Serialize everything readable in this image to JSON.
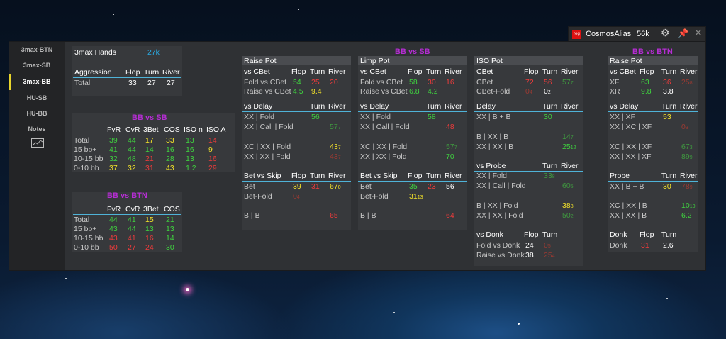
{
  "user": {
    "name": "CosmosAlias",
    "hands": "56k",
    "badge": "reg"
  },
  "sidebar": {
    "items": [
      "3max-BTN",
      "3max-SB",
      "3max-BB",
      "HU-SB",
      "HU-BB",
      "Notes"
    ]
  },
  "summary": {
    "title": "3max Hands",
    "count": "27k",
    "headers": [
      "Aggression",
      "Flop",
      "Turn",
      "River"
    ],
    "row": [
      "Total",
      "33",
      "27",
      "27"
    ]
  },
  "bbvssb_left": {
    "title": "BB vs SB",
    "headers": [
      "FvR",
      "CvR",
      "3Bet",
      "COS",
      "ISO n",
      "ISO A"
    ],
    "rows": [
      [
        "Total",
        "39",
        "44",
        "17",
        "33",
        "13",
        "14"
      ],
      [
        "15 bb+",
        "41",
        "44",
        "14",
        "16",
        "16",
        "9"
      ],
      [
        "10-15 bb",
        "32",
        "48",
        "21",
        "28",
        "13",
        "16"
      ],
      [
        "0-10 bb",
        "37",
        "32",
        "31",
        "43",
        "1.2",
        "29"
      ]
    ]
  },
  "bbvsbtn_left": {
    "title": "BB vs BTN",
    "headers": [
      "FvR",
      "CvR",
      "3Bet",
      "COS"
    ],
    "rows": [
      [
        "Total",
        "44",
        "41",
        "15",
        "21"
      ],
      [
        "15 bb+",
        "43",
        "44",
        "13",
        "13"
      ],
      [
        "10-15 bb",
        "43",
        "41",
        "16",
        "14"
      ],
      [
        "0-10 bb",
        "50",
        "27",
        "24",
        "30"
      ]
    ]
  },
  "bbvssb_title": "BB vs SB",
  "bbvsbtn_title": "BB vs BTN",
  "raise_pot": {
    "title": "Raise Pot",
    "cbet": {
      "h": [
        "vs CBet",
        "Flop",
        "Turn",
        "River"
      ],
      "rows": [
        [
          "Fold vs CBet",
          "54",
          "25",
          "20"
        ],
        [
          "Raise vs CBet",
          "4.5",
          "9.4",
          ""
        ]
      ]
    },
    "delay": {
      "h": [
        "vs Delay",
        "Turn",
        "River"
      ],
      "rows": [
        [
          "XX | Fold",
          "56",
          ""
        ],
        [
          "XX | Call | Fold",
          "",
          "57"
        ],
        [
          "XC | XX | Fold",
          "",
          "43"
        ],
        [
          "XX | XX | Fold",
          "",
          "43"
        ]
      ]
    },
    "skip": {
      "h": [
        "Bet vs Skip",
        "Flop",
        "Turn",
        "River"
      ],
      "rows": [
        [
          "Bet",
          "39",
          "31",
          "67"
        ],
        [
          "Bet-Fold",
          "0",
          "",
          ""
        ],
        [
          "B | B",
          "",
          "",
          "65"
        ]
      ]
    }
  },
  "limp_pot": {
    "title": "Limp Pot",
    "cbet": {
      "h": [
        "vs CBet",
        "Flop",
        "Turn",
        "River"
      ],
      "rows": [
        [
          "Fold vs CBet",
          "58",
          "30",
          "16"
        ],
        [
          "Raise vs CBet",
          "6.8",
          "4.2",
          ""
        ]
      ]
    },
    "delay": {
      "h": [
        "vs Delay",
        "Turn",
        "River"
      ],
      "rows": [
        [
          "XX | Fold",
          "58",
          ""
        ],
        [
          "XX | Call | Fold",
          "",
          "48"
        ],
        [
          "XC | XX | Fold",
          "",
          "57"
        ],
        [
          "XX | XX | Fold",
          "",
          "70"
        ]
      ]
    },
    "skip": {
      "h": [
        "Bet vs Skip",
        "Flop",
        "Turn",
        "River"
      ],
      "rows": [
        [
          "Bet",
          "35",
          "23",
          "56"
        ],
        [
          "Bet-Fold",
          "31",
          "",
          ""
        ],
        [
          "B | B",
          "",
          "",
          "64"
        ]
      ]
    }
  },
  "iso_pot": {
    "title": "ISO Pot",
    "cbet": {
      "h": [
        "CBet",
        "Flop",
        "Turn",
        "River"
      ],
      "rows": [
        [
          "CBet",
          "72",
          "56",
          "57"
        ],
        [
          "CBet-Fold",
          "0",
          "0",
          ""
        ]
      ]
    },
    "delay": {
      "h": [
        "Delay",
        "Turn",
        "River"
      ],
      "rows": [
        [
          "XX | B + B",
          "30",
          ""
        ],
        [
          "B | XX | B",
          "",
          "14"
        ],
        [
          "XX | XX | B",
          "",
          "25"
        ]
      ]
    },
    "probe": {
      "h": [
        "vs Probe",
        "Turn",
        "River"
      ],
      "rows": [
        [
          "XX | Fold",
          "33",
          ""
        ],
        [
          "XX | Call | Fold",
          "",
          "60"
        ],
        [
          "B | XX | Fold",
          "",
          "38"
        ],
        [
          "XX | XX | Fold",
          "",
          "50"
        ]
      ]
    },
    "donk": {
      "h": [
        "vs Donk",
        "Flop",
        "Turn"
      ],
      "rows": [
        [
          "Fold vs Donk",
          "24",
          "0"
        ],
        [
          "Raise vs Donk",
          "38",
          "25"
        ]
      ]
    }
  },
  "btn_raise": {
    "title": "Raise Pot",
    "cbet": {
      "h": [
        "vs CBet",
        "Flop",
        "Turn",
        "River"
      ],
      "rows": [
        [
          "XF",
          "63",
          "36",
          "25"
        ],
        [
          "XR",
          "9.8",
          "3.8",
          ""
        ]
      ]
    },
    "delay": {
      "h": [
        "vs Delay",
        "Turn",
        "River"
      ],
      "rows": [
        [
          "XX | XF",
          "53",
          ""
        ],
        [
          "XX | XC | XF",
          "",
          "0"
        ],
        [
          "XC | XX | XF",
          "",
          "67"
        ],
        [
          "XX | XX | XF",
          "",
          "89"
        ]
      ]
    },
    "probe": {
      "h": [
        "Probe",
        "Turn",
        "River"
      ],
      "rows": [
        [
          "XX | B + B",
          "30",
          "78"
        ],
        [
          "XC | XX | B",
          "",
          "10"
        ],
        [
          "XX | XX | B",
          "",
          "6.2"
        ]
      ]
    },
    "donk": {
      "h": [
        "Donk",
        "Flop",
        "Turn"
      ],
      "rows": [
        [
          "Donk",
          "31",
          "2.6"
        ]
      ]
    }
  },
  "subs": {
    "rp_skip_bet": "0",
    "rp_skip_bf": "4",
    "rp_d1": "7",
    "rp_d2": "7",
    "rp_d3": "7",
    "lp_bf": "13",
    "lp_d2": "7",
    "iso_cb": "7",
    "iso_cbf1": "4",
    "iso_cbf2": "2",
    "iso_d1": "7",
    "iso_d2": "12",
    "iso_p1": "8",
    "iso_p2": "5",
    "iso_p3": "8",
    "iso_p4": "2",
    "iso_dk1": "5",
    "iso_dk2": "4",
    "bt_cb": "8",
    "bt_d1": "3",
    "bt_d2": "3",
    "bt_d3": "9",
    "bt_p1": "9",
    "bt_p2": "10"
  }
}
